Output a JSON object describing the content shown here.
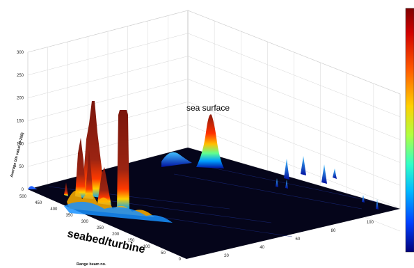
{
  "plot": {
    "z_axis_label": "Average bin value (0-255)",
    "y_axis_label": "Range beam no.",
    "z_ticks": [
      "0",
      "50",
      "100",
      "150",
      "200",
      "250",
      "300"
    ],
    "y_ticks": [
      "0",
      "50",
      "100",
      "150",
      "200",
      "250",
      "300",
      "350",
      "400",
      "450",
      "500"
    ],
    "x_ticks": [
      "20",
      "40",
      "60",
      "80",
      "100"
    ],
    "z_range": [
      0,
      300
    ],
    "y_range": [
      0,
      500
    ],
    "x_range": [
      0,
      120
    ]
  },
  "annotations": {
    "sea_surface": "sea surface",
    "seabed_turbine": "seabed/turbine"
  },
  "colors": {
    "surface_floor": "#05051a",
    "peak_dark_red": "#8b1a0f",
    "grid_line": "#cfcfcf",
    "colormap": [
      "#7f0000",
      "#c00000",
      "#ff2000",
      "#ff7a00",
      "#ffd000",
      "#c8ff30",
      "#40ffb0",
      "#00d0ff",
      "#0060ff",
      "#0000b0",
      "#00007a"
    ]
  }
}
